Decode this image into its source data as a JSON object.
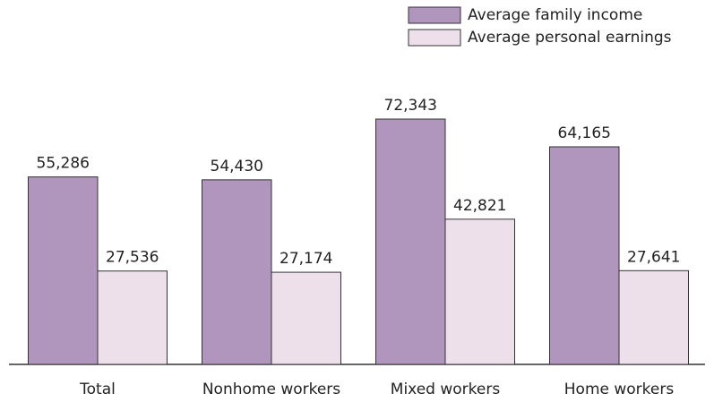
{
  "chart_data": {
    "type": "bar",
    "categories": [
      "Total",
      "Nonhome workers",
      "Mixed workers",
      "Home workers"
    ],
    "series": [
      {
        "name": "Average family income",
        "color": "#b095bc",
        "values": [
          55286,
          54430,
          72343,
          64165
        ],
        "value_labels": [
          "55,286",
          "54,430",
          "72,343",
          "64,165"
        ]
      },
      {
        "name": "Average personal earnings",
        "color": "#ede0ea",
        "values": [
          27536,
          27174,
          42821,
          27641
        ],
        "value_labels": [
          "27,536",
          "27,174",
          "42,821",
          "27,641"
        ]
      }
    ],
    "legend": "top-right"
  }
}
